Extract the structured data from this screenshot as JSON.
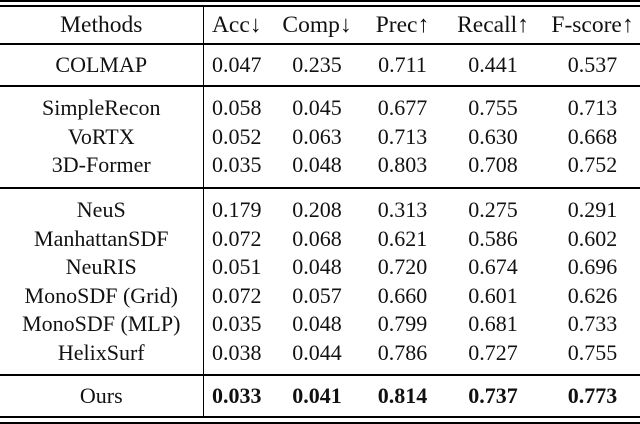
{
  "table": {
    "columns": [
      "Methods",
      "Acc↓",
      "Comp↓",
      "Prec↑",
      "Recall↑",
      "F-score↑"
    ],
    "groups": [
      {
        "rows": [
          {
            "method": "COLMAP",
            "values": [
              "0.047",
              "0.235",
              "0.711",
              "0.441",
              "0.537"
            ],
            "bold_values": false
          }
        ]
      },
      {
        "rows": [
          {
            "method": "SimpleRecon",
            "values": [
              "0.058",
              "0.045",
              "0.677",
              "0.755",
              "0.713"
            ],
            "bold_values": false
          },
          {
            "method": "VoRTX",
            "values": [
              "0.052",
              "0.063",
              "0.713",
              "0.630",
              "0.668"
            ],
            "bold_values": false
          },
          {
            "method": "3D-Former",
            "values": [
              "0.035",
              "0.048",
              "0.803",
              "0.708",
              "0.752"
            ],
            "bold_values": false
          }
        ]
      },
      {
        "rows": [
          {
            "method": "NeuS",
            "values": [
              "0.179",
              "0.208",
              "0.313",
              "0.275",
              "0.291"
            ],
            "bold_values": false
          },
          {
            "method": "ManhattanSDF",
            "values": [
              "0.072",
              "0.068",
              "0.621",
              "0.586",
              "0.602"
            ],
            "bold_values": false
          },
          {
            "method": "NeuRIS",
            "values": [
              "0.051",
              "0.048",
              "0.720",
              "0.674",
              "0.696"
            ],
            "bold_values": false
          },
          {
            "method": "MonoSDF (Grid)",
            "values": [
              "0.072",
              "0.057",
              "0.660",
              "0.601",
              "0.626"
            ],
            "bold_values": false
          },
          {
            "method": "MonoSDF (MLP)",
            "values": [
              "0.035",
              "0.048",
              "0.799",
              "0.681",
              "0.733"
            ],
            "bold_values": false
          },
          {
            "method": "HelixSurf",
            "values": [
              "0.038",
              "0.044",
              "0.786",
              "0.727",
              "0.755"
            ],
            "bold_values": false
          }
        ]
      },
      {
        "rows": [
          {
            "method": "Ours",
            "values": [
              "0.033",
              "0.041",
              "0.814",
              "0.737",
              "0.773"
            ],
            "bold_values": true
          }
        ]
      }
    ]
  }
}
